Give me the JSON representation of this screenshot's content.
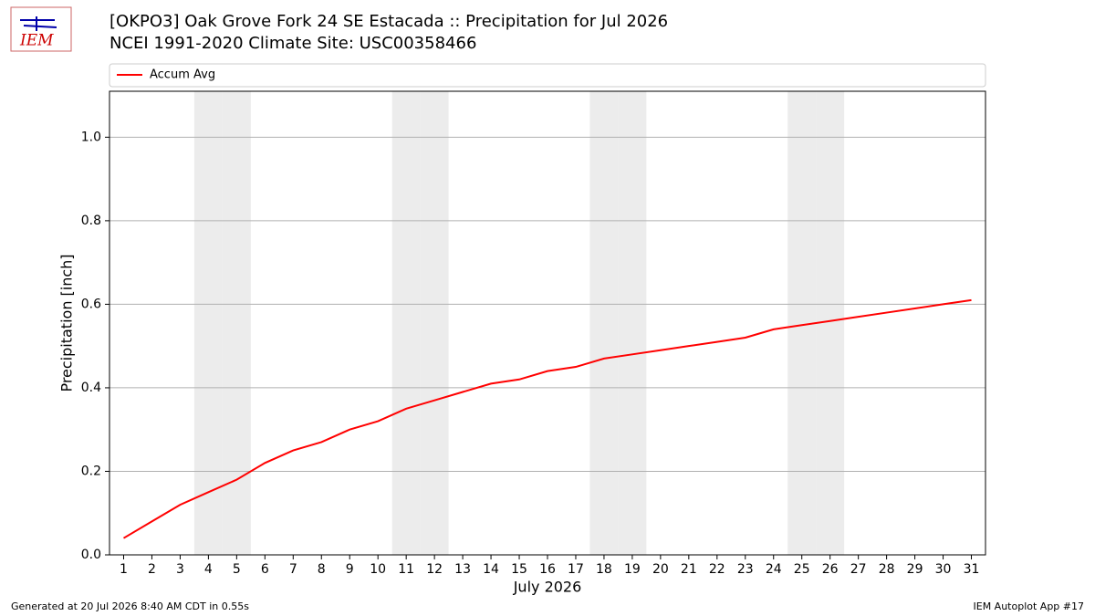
{
  "logo": "IEM",
  "footer": {
    "left": "Generated at 20 Jul 2026 8:40 AM CDT in 0.55s",
    "right": "IEM Autoplot App #17"
  },
  "chart_data": {
    "type": "line",
    "title": "[OKPO3] Oak Grove Fork 24 SE Estacada :: Precipitation for Jul 2026",
    "subtitle": "NCEI 1991-2020 Climate Site: USC00358466",
    "x_label": "July 2026",
    "y_label": "Precipitation [inch]",
    "x": [
      1,
      2,
      3,
      4,
      5,
      6,
      7,
      8,
      9,
      10,
      11,
      12,
      13,
      14,
      15,
      16,
      17,
      18,
      19,
      20,
      21,
      22,
      23,
      24,
      25,
      26,
      27,
      28,
      29,
      30,
      31
    ],
    "series": [
      {
        "name": "Accum Avg",
        "color": "#ff0000",
        "values": [
          0.04,
          0.08,
          0.12,
          0.15,
          0.18,
          0.22,
          0.25,
          0.27,
          0.3,
          0.32,
          0.35,
          0.37,
          0.39,
          0.41,
          0.42,
          0.44,
          0.45,
          0.47,
          0.48,
          0.49,
          0.5,
          0.51,
          0.52,
          0.54,
          0.55,
          0.56,
          0.57,
          0.58,
          0.59,
          0.6,
          0.61
        ]
      }
    ],
    "shaded_days": [
      4,
      5,
      11,
      12,
      18,
      19,
      25,
      26
    ],
    "xlim": [
      0.5,
      31.5
    ],
    "xticks": [
      1,
      2,
      3,
      4,
      5,
      6,
      7,
      8,
      9,
      10,
      11,
      12,
      13,
      14,
      15,
      16,
      17,
      18,
      19,
      20,
      21,
      22,
      23,
      24,
      25,
      26,
      27,
      28,
      29,
      30,
      31
    ],
    "ylim": [
      0,
      1.11
    ],
    "yticks": [
      {
        "value": 0,
        "label": "0.0"
      },
      0.2,
      0.4,
      0.6,
      0.8,
      {
        "value": 1,
        "label": "1.0"
      }
    ],
    "grid": true,
    "legend": "top"
  }
}
